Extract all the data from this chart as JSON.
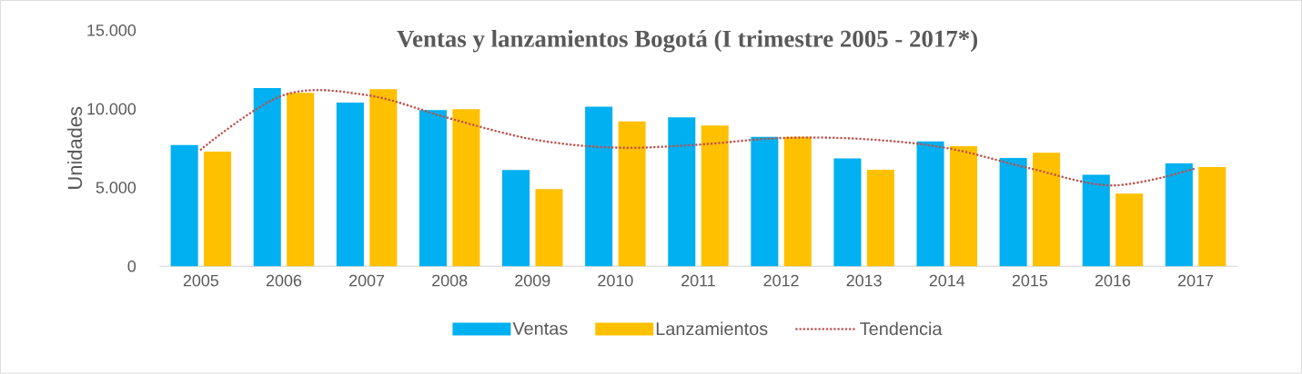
{
  "chart_data": {
    "type": "bar",
    "title": "Ventas y lanzamientos Bogotá (I trimestre 2005 - 2017*)",
    "ylabel": "Unidades",
    "categories": [
      "2005",
      "2006",
      "2007",
      "2008",
      "2009",
      "2010",
      "2011",
      "2012",
      "2013",
      "2014",
      "2015",
      "2016",
      "2017"
    ],
    "series": [
      {
        "name": "Ventas",
        "color": "#00b0f0",
        "values": [
          7700,
          11330,
          10400,
          9930,
          6120,
          10140,
          9460,
          8220,
          6850,
          7930,
          6880,
          5820,
          6530
        ]
      },
      {
        "name": "Lanzamientos",
        "color": "#ffc000",
        "values": [
          7290,
          11020,
          11260,
          9980,
          4900,
          9210,
          8940,
          8220,
          6130,
          7630,
          7210,
          4620,
          6310
        ]
      },
      {
        "name": "Tendencia",
        "type": "line",
        "color": "#c0504d",
        "line_style": "dotted",
        "marker": "none",
        "values": [
          7420,
          10880,
          10880,
          9400,
          8070,
          7540,
          7730,
          8150,
          8080,
          7510,
          6220,
          5140,
          6220
        ]
      }
    ],
    "ylim": [
      0,
      15000
    ],
    "yticks": [
      {
        "value": 0,
        "label": "0"
      },
      {
        "value": 5000,
        "label": "5.000"
      },
      {
        "value": 10000,
        "label": "10.000"
      },
      {
        "value": 15000,
        "label": "15.000"
      }
    ],
    "grid": false,
    "legend": "bottom"
  }
}
